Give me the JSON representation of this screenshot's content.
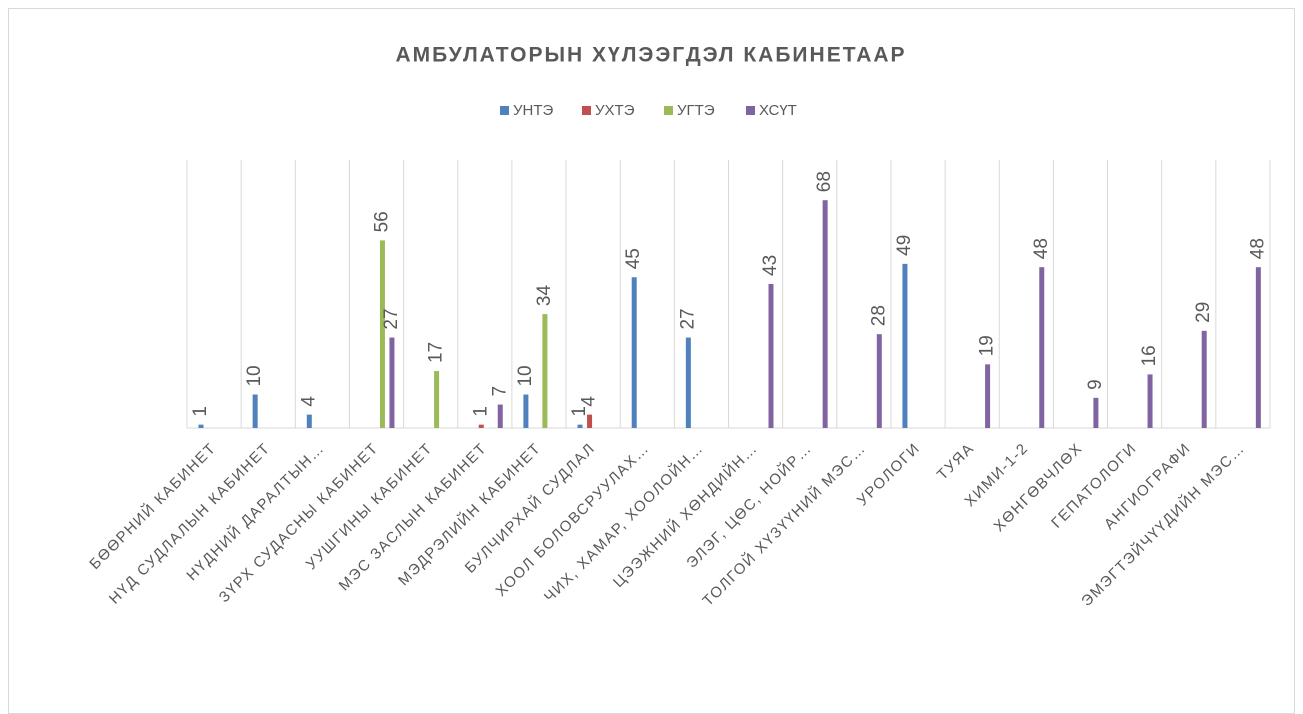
{
  "chart_data": {
    "type": "bar",
    "title": "АМБУЛАТОРЫН ХҮЛЭЭГДЭЛ КАБИНЕТААР",
    "categories": [
      "БӨӨРНИЙ КАБИНЕТ",
      "НҮД СУДЛАЛЫН КАБИНЕТ",
      "НҮДНИЙ ДАРАЛТЫН…",
      "ЗҮРХ СУДАСНЫ КАБИНЕТ",
      "УУШГИНЫ КАБИНЕТ",
      "МЭС ЗАСЛЫН КАБИНЕТ",
      "МЭДРЭЛИЙН  КАБИНЕТ",
      "БУЛЧИРХАЙ СУДЛАЛ",
      "ХООЛ БОЛОВСРУУЛАХ…",
      "ЧИХ, ХАМАР, ХООЛОЙН…",
      "ЦЭЭЖНИЙ ХӨНДИЙН…",
      "ЭЛЭГ, ЦӨС, НОЙР…",
      "ТОЛГОЙ ХҮЗҮҮНИЙ МЭС…",
      "УРОЛОГИ",
      "ТУЯА",
      "ХИМИ-1-2",
      "ХӨНГӨВЧЛӨХ",
      "ГЕПАТОЛОГИ",
      "АНГИОГРАФИ",
      "ЭМЭГТЭЙЧҮҮДИЙН МЭС…"
    ],
    "series": [
      {
        "name": "УНТЭ",
        "color": "#4f81bd",
        "values": [
          1,
          10,
          4,
          null,
          null,
          null,
          10,
          1,
          45,
          27,
          null,
          null,
          null,
          49,
          null,
          null,
          null,
          null,
          null,
          null
        ]
      },
      {
        "name": "УХТЭ",
        "color": "#c0504d",
        "values": [
          null,
          null,
          null,
          null,
          null,
          1,
          null,
          4,
          null,
          null,
          null,
          null,
          null,
          null,
          null,
          null,
          null,
          null,
          null,
          null
        ]
      },
      {
        "name": "УГТЭ",
        "color": "#9bbb59",
        "values": [
          null,
          null,
          null,
          56,
          17,
          null,
          34,
          null,
          null,
          null,
          null,
          null,
          null,
          null,
          null,
          null,
          null,
          null,
          null,
          null
        ]
      },
      {
        "name": "ХСҮТ",
        "color": "#8064a2",
        "values": [
          null,
          null,
          null,
          27,
          null,
          7,
          null,
          null,
          null,
          null,
          43,
          68,
          28,
          null,
          19,
          48,
          9,
          16,
          29,
          48
        ]
      }
    ],
    "ylim": [
      0,
      80
    ],
    "legend": "top"
  }
}
